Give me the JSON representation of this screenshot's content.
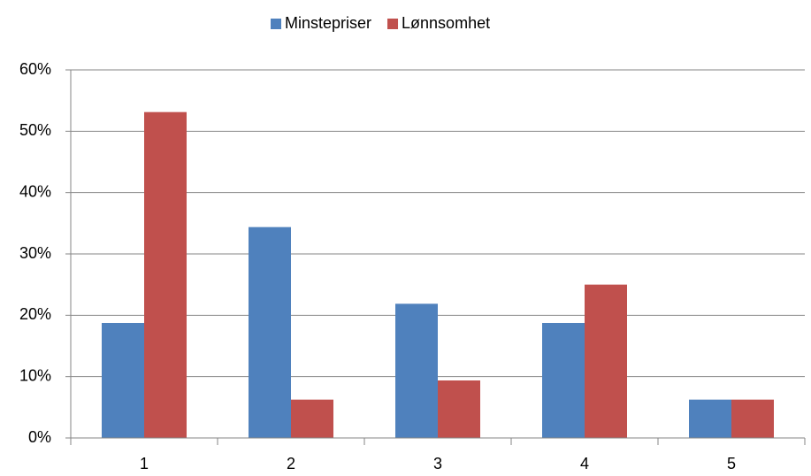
{
  "chart_data": {
    "type": "bar",
    "categories": [
      "1",
      "2",
      "3",
      "4",
      "5"
    ],
    "series": [
      {
        "name": "Minstepriser",
        "color": "#4f81bd",
        "values": [
          18.75,
          34.375,
          21.875,
          18.75,
          6.25
        ]
      },
      {
        "name": "Lønnsomhet",
        "color": "#c0504d",
        "values": [
          53.125,
          6.25,
          9.375,
          25,
          6.25
        ]
      }
    ],
    "ylim": [
      0,
      60
    ],
    "yticks": [
      {
        "value": 0,
        "label": "0%"
      },
      {
        "value": 10,
        "label": "10%"
      },
      {
        "value": 20,
        "label": "20%"
      },
      {
        "value": 30,
        "label": "30%"
      },
      {
        "value": 40,
        "label": "40%"
      },
      {
        "value": 50,
        "label": "50%"
      },
      {
        "value": 60,
        "label": "60%"
      }
    ],
    "grid": true,
    "legend": "top"
  }
}
